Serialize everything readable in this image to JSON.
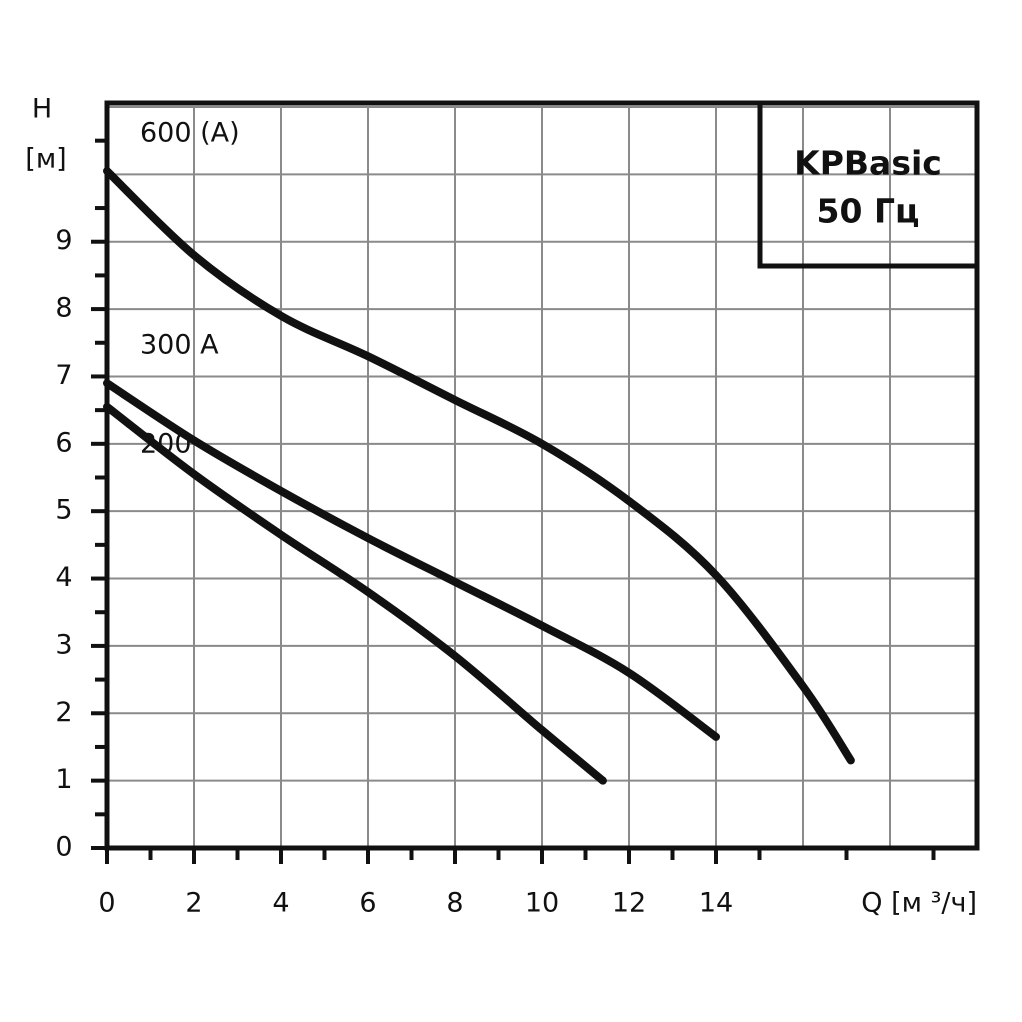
{
  "chart_data": {
    "type": "line",
    "title": "KPBasic",
    "subtitle": "50 Гц",
    "x_label": "Q [м ³/ч]",
    "y_label": "H",
    "y_unit": "[м]",
    "xlim": [
      0,
      20
    ],
    "ylim": [
      0,
      11
    ],
    "xticks": [
      0,
      2,
      4,
      6,
      8,
      10,
      12,
      14
    ],
    "yticks": [
      0,
      1,
      2,
      3,
      4,
      5,
      6,
      7,
      8,
      9
    ],
    "xgrid": [
      0,
      2,
      4,
      6,
      8,
      10,
      12,
      14,
      16,
      18,
      20
    ],
    "ygrid": [
      0,
      1,
      2,
      3,
      4,
      5,
      6,
      7,
      8,
      9,
      10,
      11
    ],
    "grid": true,
    "series": [
      {
        "name": "600 (A)",
        "color": "#111111",
        "x": [
          0,
          2,
          4,
          6,
          8,
          10,
          12,
          14,
          16,
          17.1
        ],
        "values": [
          10.05,
          8.8,
          7.9,
          7.3,
          6.65,
          6.0,
          5.15,
          4.05,
          2.4,
          1.3
        ]
      },
      {
        "name": "300 A",
        "color": "#111111",
        "x": [
          0,
          2,
          4,
          6,
          8,
          10,
          12,
          14
        ],
        "values": [
          6.9,
          6.05,
          5.3,
          4.6,
          3.95,
          3.3,
          2.6,
          1.65
        ]
      },
      {
        "name": "200",
        "color": "#111111",
        "x": [
          0,
          2,
          4,
          6,
          8,
          10,
          11.4
        ],
        "values": [
          6.55,
          5.55,
          4.65,
          3.8,
          2.85,
          1.75,
          1.0
        ]
      }
    ]
  }
}
